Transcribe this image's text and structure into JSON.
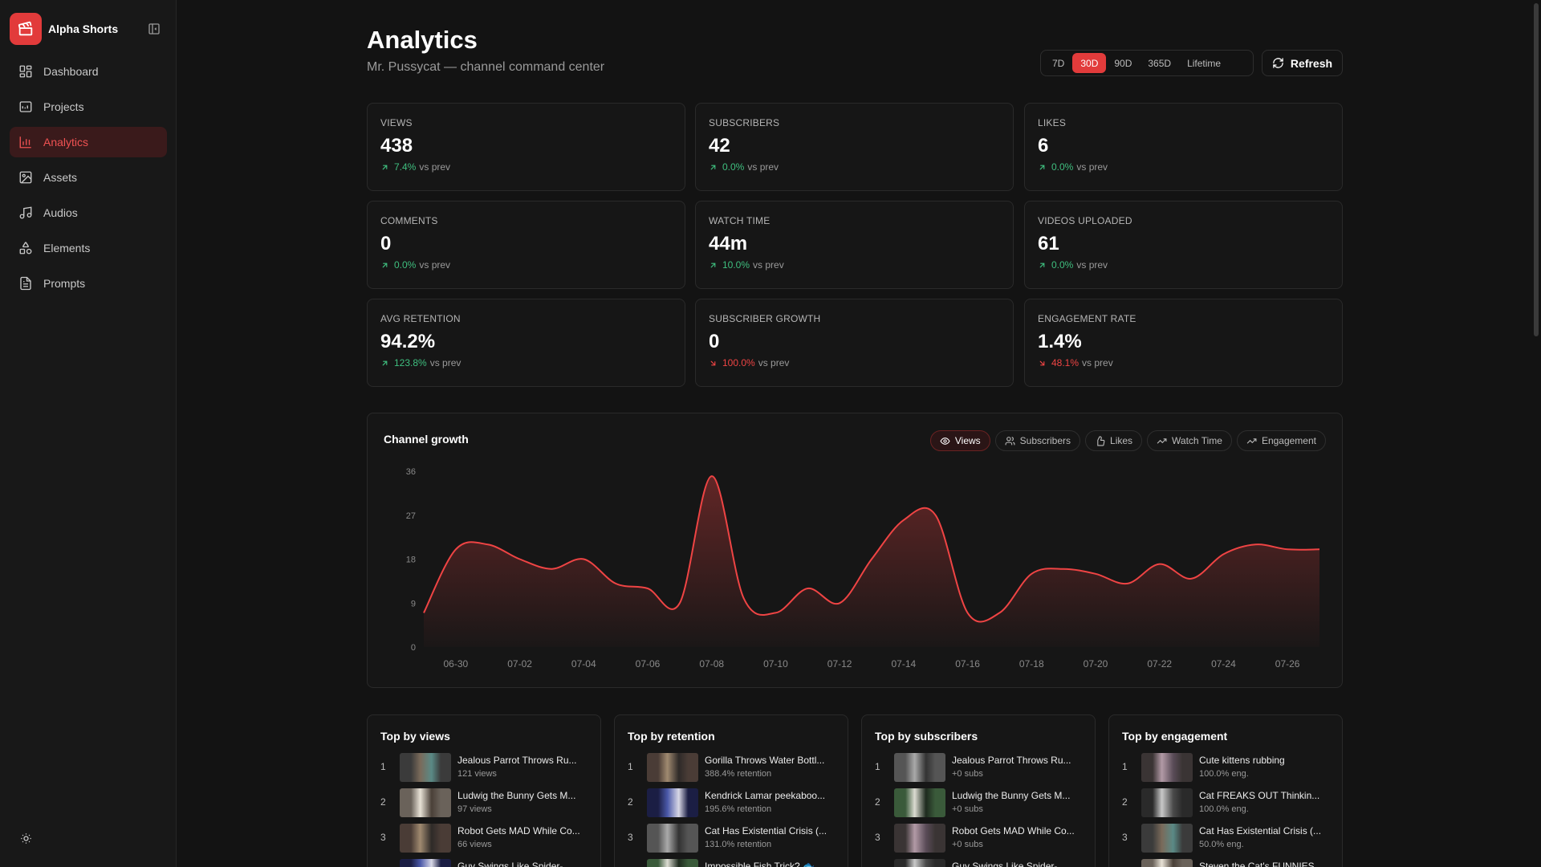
{
  "app": {
    "name": "Alpha Shorts",
    "logo_icon": "clapperboard-icon",
    "accent": "#e23b3b"
  },
  "sidebar": {
    "items": [
      {
        "label": "Dashboard",
        "icon": "layout-grid-icon",
        "active": false
      },
      {
        "label": "Projects",
        "icon": "folder-icon",
        "active": false
      },
      {
        "label": "Analytics",
        "icon": "bar-chart-icon",
        "active": true
      },
      {
        "label": "Assets",
        "icon": "image-icon",
        "active": false
      },
      {
        "label": "Audios",
        "icon": "music-icon",
        "active": false
      },
      {
        "label": "Elements",
        "icon": "shapes-icon",
        "active": false
      },
      {
        "label": "Prompts",
        "icon": "file-text-icon",
        "active": false
      }
    ]
  },
  "header": {
    "title": "Analytics",
    "subtitle": "Mr. Pussycat — channel command center",
    "ranges": [
      "7D",
      "30D",
      "90D",
      "365D",
      "Lifetime"
    ],
    "active_range": "30D",
    "refresh_label": "Refresh"
  },
  "kpis": [
    {
      "label": "VIEWS",
      "value": "438",
      "delta": "7.4%",
      "direction": "up",
      "suffix": "vs prev"
    },
    {
      "label": "SUBSCRIBERS",
      "value": "42",
      "delta": "0.0%",
      "direction": "up",
      "suffix": "vs prev"
    },
    {
      "label": "LIKES",
      "value": "6",
      "delta": "0.0%",
      "direction": "up",
      "suffix": "vs prev"
    },
    {
      "label": "COMMENTS",
      "value": "0",
      "delta": "0.0%",
      "direction": "up",
      "suffix": "vs prev"
    },
    {
      "label": "WATCH TIME",
      "value": "44m",
      "delta": "10.0%",
      "direction": "up",
      "suffix": "vs prev"
    },
    {
      "label": "VIDEOS UPLOADED",
      "value": "61",
      "delta": "0.0%",
      "direction": "up",
      "suffix": "vs prev"
    },
    {
      "label": "AVG RETENTION",
      "value": "94.2%",
      "delta": "123.8%",
      "direction": "up",
      "suffix": "vs prev"
    },
    {
      "label": "SUBSCRIBER GROWTH",
      "value": "0",
      "delta": "100.0%",
      "direction": "down",
      "suffix": "vs prev"
    },
    {
      "label": "ENGAGEMENT RATE",
      "value": "1.4%",
      "delta": "48.1%",
      "direction": "down",
      "suffix": "vs prev"
    }
  ],
  "chart": {
    "title": "Channel growth",
    "tabs": [
      {
        "label": "Views",
        "icon": "eye-icon",
        "active": true
      },
      {
        "label": "Subscribers",
        "icon": "users-icon",
        "active": false
      },
      {
        "label": "Likes",
        "icon": "thumbs-up-icon",
        "active": false
      },
      {
        "label": "Watch Time",
        "icon": "trending-up-icon",
        "active": false
      },
      {
        "label": "Engagement",
        "icon": "trending-up-icon",
        "active": false
      }
    ]
  },
  "chart_data": {
    "type": "area",
    "title": "Channel growth",
    "xlabel": "",
    "ylabel": "",
    "x": [
      "06-29",
      "06-30",
      "07-01",
      "07-02",
      "07-03",
      "07-04",
      "07-05",
      "07-06",
      "07-07",
      "07-08",
      "07-09",
      "07-10",
      "07-11",
      "07-12",
      "07-13",
      "07-14",
      "07-15",
      "07-16",
      "07-17",
      "07-18",
      "07-19",
      "07-20",
      "07-21",
      "07-22",
      "07-23",
      "07-24",
      "07-25",
      "07-26",
      "07-27"
    ],
    "x_tick_labels": [
      "06-30",
      "07-02",
      "07-04",
      "07-06",
      "07-08",
      "07-10",
      "07-12",
      "07-14",
      "07-16",
      "07-18",
      "07-20",
      "07-22",
      "07-24",
      "07-26"
    ],
    "series": [
      {
        "values": [
          7,
          20,
          21,
          18,
          16,
          18,
          13,
          12,
          9,
          35,
          10,
          7,
          12,
          9,
          18,
          26,
          27,
          7,
          7,
          15,
          16,
          15,
          13,
          17,
          14,
          19,
          21,
          20,
          20
        ]
      }
    ],
    "yticks": [
      0,
      9,
      18,
      27,
      36
    ],
    "ylim": [
      0,
      36
    ],
    "grid": false,
    "color": "#ef4444"
  },
  "top_lists": [
    {
      "title": "Top by views",
      "rows": [
        {
          "rank": "1",
          "title": "Jealous Parrot Throws Ru...",
          "meta": "121 views"
        },
        {
          "rank": "2",
          "title": "Ludwig the Bunny Gets M...",
          "meta": "97 views"
        },
        {
          "rank": "3",
          "title": "Robot Gets MAD While Co...",
          "meta": "66 views"
        },
        {
          "rank": "4",
          "title": "Guy Swings Like Spider-...",
          "meta": ""
        }
      ]
    },
    {
      "title": "Top by retention",
      "rows": [
        {
          "rank": "1",
          "title": "Gorilla Throws Water Bottl...",
          "meta": "388.4% retention"
        },
        {
          "rank": "2",
          "title": "Kendrick Lamar peekaboo...",
          "meta": "195.6% retention"
        },
        {
          "rank": "3",
          "title": "Cat Has Existential Crisis (...",
          "meta": "131.0% retention"
        },
        {
          "rank": "4",
          "title": "Impossible Fish Trick? 🐟...",
          "meta": ""
        }
      ]
    },
    {
      "title": "Top by subscribers",
      "rows": [
        {
          "rank": "1",
          "title": "Jealous Parrot Throws Ru...",
          "meta": "+0 subs"
        },
        {
          "rank": "2",
          "title": "Ludwig the Bunny Gets M...",
          "meta": "+0 subs"
        },
        {
          "rank": "3",
          "title": "Robot Gets MAD While Co...",
          "meta": "+0 subs"
        },
        {
          "rank": "4",
          "title": "Guy Swings Like Spider-...",
          "meta": ""
        }
      ]
    },
    {
      "title": "Top by engagement",
      "rows": [
        {
          "rank": "1",
          "title": "Cute kittens rubbing",
          "meta": "100.0% eng."
        },
        {
          "rank": "2",
          "title": "Cat FREAKS OUT Thinkin...",
          "meta": "100.0% eng."
        },
        {
          "rank": "3",
          "title": "Cat Has Existential Crisis (...",
          "meta": "50.0% eng."
        },
        {
          "rank": "4",
          "title": "Steven the Cat's FUNNIES...",
          "meta": ""
        }
      ]
    }
  ]
}
